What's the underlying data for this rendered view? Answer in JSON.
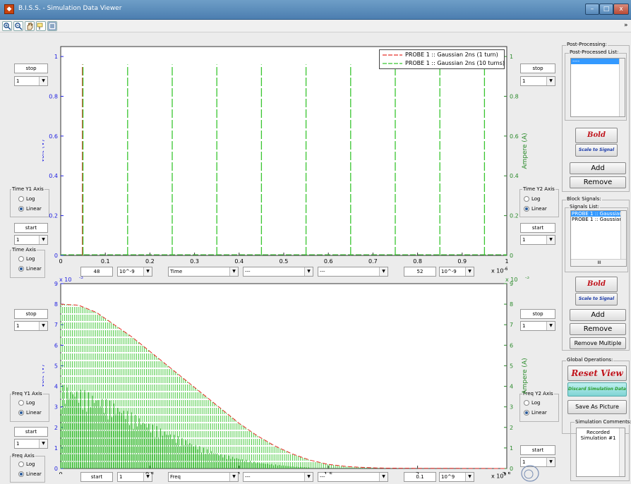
{
  "window": {
    "title": "B.I.S.S. - Simulation Data Viewer",
    "app_icon": "matlab-icon",
    "controls": {
      "minimize": "–",
      "maximize": "□",
      "close": "x"
    }
  },
  "toolbar": {
    "icons": [
      "zoom-in-icon",
      "zoom-out-icon",
      "pan-hand-icon",
      "data-cursor-icon",
      "legend-icon"
    ],
    "overflow": "»"
  },
  "time_plot": {
    "legend": [
      {
        "label": "PROBE 1  :: Gaussian 2ns (1 turn)",
        "color": "#e8302a",
        "style": "dashed"
      },
      {
        "label": "PROBE 1  :: Gaussian 2ns (10 turns)",
        "color": "#39c530",
        "style": "dashed"
      }
    ],
    "left_stop_label": "stop",
    "left_stop_value": "1",
    "right_stop_label": "stop",
    "right_stop_value": "1",
    "y1_axis_legend": "Time Y1 Axis",
    "y2_axis_legend": "Time Y2 Axis",
    "x_axis_legend": "Time Axis",
    "log_label": "Log",
    "linear_label": "Linear",
    "left_start_label": "start",
    "left_start_value": "1",
    "right_start_label": "start",
    "right_start_value": "1",
    "bottom_left_value": "48",
    "bottom_left_unit": "10^-9",
    "signal_type": "Time",
    "filter1": "---",
    "filter2": "---",
    "bottom_right_value": "52",
    "bottom_right_unit": "10^-9",
    "exponent_label": "x 10",
    "exponent_power": "-6"
  },
  "freq_plot": {
    "left_stop_label": "stop",
    "left_stop_value": "1",
    "right_stop_label": "stop",
    "right_stop_value": "1",
    "y1_axis_legend": "Freq Y1 Axis",
    "y2_axis_legend": "Freq Y2 Axis",
    "x_axis_legend": "Freq Axis",
    "log_label": "Log",
    "linear_label": "Linear",
    "left_start_label": "start",
    "left_start_value": "1",
    "right_start_label": "start",
    "right_start_value": "1",
    "bottom_start_label": "start",
    "bottom_start_value": "1",
    "signal_type": "Freq",
    "filter1": "---",
    "filter2": "---",
    "bottom_right_value": "0.1",
    "bottom_right_unit": "10^9",
    "exponent_label": "x 10",
    "exponent_power": "9",
    "y_exponent_label": "x 10",
    "y_exponent_power": "-3",
    "y2_exponent_label": "x 10",
    "y2_exponent_power": "-3"
  },
  "side_panel": {
    "post_processing_legend": "Post-Processing:",
    "post_processed_list_legend": "Post-Processed List:",
    "post_processed_items": [
      "----"
    ],
    "bold_label": "Bold",
    "scale_label": "Scale to Signal",
    "add_label": "Add",
    "remove_label": "Remove",
    "block_signals_legend": "Block Signals:",
    "signals_list_legend": "Signals List:",
    "signals": [
      "PROBE 1  :: Gaussian",
      "PROBE 1  :: Gaussian"
    ],
    "scroll_thumb": "III",
    "bold2_label": "Bold",
    "scale2_label": "Scale to Signal",
    "add2_label": "Add",
    "remove2_label": "Remove",
    "remove_multiple_label": "Remove Multiple",
    "global_ops_legend": "Global Operations:",
    "reset_view_label": "Reset View",
    "discard_label": "Discard Simulation Data",
    "save_picture_label": "Save As Picture",
    "comments_legend": "Simulation Comments:",
    "comments_text": "Recorded Simulation #1"
  },
  "chart_data": [
    {
      "type": "line",
      "title": "",
      "xlabel": "",
      "ylabel": "Volt (V)",
      "y2label": "Ampere (A)",
      "x_scale_note": "x 10^-6",
      "xlim": [
        0,
        1
      ],
      "ylim": [
        0,
        1.05
      ],
      "y2lim": [
        0,
        1.05
      ],
      "x_ticks": [
        "0",
        "0.1",
        "0.2",
        "0.3",
        "0.4",
        "0.5",
        "0.6",
        "0.7",
        "0.8",
        "0.9",
        "1"
      ],
      "y_ticks": [
        "0",
        "0.2",
        "0.4",
        "0.6",
        "0.8",
        "1"
      ],
      "y2_ticks": [
        "0",
        "0.2",
        "0.4",
        "0.6",
        "0.8",
        "1"
      ],
      "grid": false,
      "legend_position": "top-right",
      "series": [
        {
          "name": "PROBE 1  :: Gaussian 2ns (1 turn)",
          "color": "#e8302a",
          "x": [
            0.05
          ],
          "values": [
            0.96
          ]
        },
        {
          "name": "PROBE 1  :: Gaussian 2ns (10 turns)",
          "color": "#39c530",
          "x": [
            0.05,
            0.15,
            0.25,
            0.35,
            0.45,
            0.55,
            0.65,
            0.75,
            0.85,
            0.95
          ],
          "values": [
            0.96,
            0.96,
            0.96,
            0.96,
            0.96,
            0.96,
            0.96,
            0.96,
            0.96,
            0.96
          ]
        }
      ]
    },
    {
      "type": "line",
      "title": "",
      "xlabel": "",
      "ylabel": "Volt (V)",
      "y2label": "Ampere (A)",
      "x_scale_note": "x 10^9",
      "y_scale_note": "x 10^-3",
      "xlim": [
        0,
        2.5
      ],
      "ylim": [
        0,
        9
      ],
      "y2lim": [
        0,
        9
      ],
      "x_ticks": [
        "0",
        "0.5",
        "1",
        "1.5",
        "2",
        "2.5"
      ],
      "y_ticks": [
        "0",
        "1",
        "2",
        "3",
        "4",
        "5",
        "6",
        "7",
        "8",
        "9"
      ],
      "y2_ticks": [
        "0",
        "1",
        "2",
        "3",
        "4",
        "5",
        "6",
        "7",
        "8",
        "9"
      ],
      "grid": false,
      "legend_position": "none",
      "series": [
        {
          "name": "PROBE 1  :: Gaussian 2ns (1 turn)",
          "color": "#e8302a",
          "x": [
            0,
            0.1,
            0.2,
            0.3,
            0.4,
            0.5,
            0.6,
            0.7,
            0.8,
            0.9,
            1.0,
            1.1,
            1.2,
            1.3,
            1.4,
            1.5,
            1.6,
            1.7,
            1.8,
            2.0,
            2.5
          ],
          "values": [
            8.0,
            7.95,
            7.6,
            7.0,
            6.4,
            5.7,
            5.0,
            4.3,
            3.6,
            2.9,
            2.2,
            1.6,
            1.1,
            0.7,
            0.4,
            0.2,
            0.1,
            0.05,
            0.02,
            0.01,
            0
          ]
        },
        {
          "name": "PROBE 1  :: Gaussian 2ns (10 turns)",
          "color": "#39c530",
          "x": [
            0,
            0.1,
            0.2,
            0.3,
            0.4,
            0.5,
            0.6,
            0.7,
            0.8,
            0.9,
            1.0,
            1.1,
            1.2,
            1.3,
            1.4,
            1.5,
            1.6,
            1.7,
            1.8,
            2.0,
            2.5
          ],
          "values": [
            8.0,
            7.95,
            7.6,
            7.0,
            6.4,
            5.7,
            5.0,
            4.3,
            3.6,
            2.9,
            2.2,
            1.6,
            1.1,
            0.7,
            0.4,
            0.2,
            0.1,
            0.05,
            0.02,
            0.01,
            0
          ],
          "secondary_envelope": [
            4.1,
            3.9,
            3.6,
            3.2,
            2.7,
            2.2,
            1.8,
            1.4,
            1.0,
            0.7,
            0.5,
            0.3,
            0.2,
            0.1,
            0.05,
            0.02,
            0,
            0,
            0,
            0,
            0
          ]
        }
      ]
    }
  ]
}
